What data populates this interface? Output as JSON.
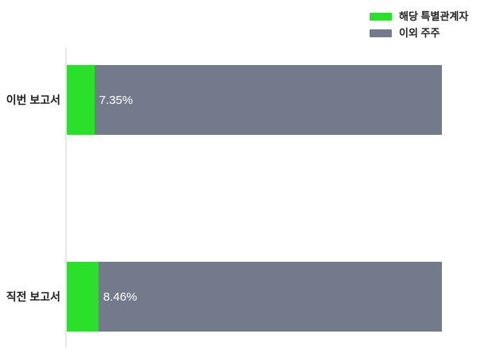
{
  "colors": {
    "green": "#2BE02B",
    "gray": "#727A8B",
    "axis_line": "#E8E8E8",
    "category_text": "#1D1D1D",
    "value_text": "#FFFFFF",
    "legend_text": "#222222",
    "background": "#FFFFFF"
  },
  "legend": {
    "position": "top-right",
    "items": [
      {
        "label": "해당 특별관계자",
        "color": "#2BE02B",
        "swatch": "green-swatch"
      },
      {
        "label": "이외 주주",
        "color": "#727A8B",
        "swatch": "gray-swatch"
      }
    ]
  },
  "chart_data": {
    "type": "bar",
    "orientation": "horizontal",
    "stacked": true,
    "unit": "%",
    "title": "",
    "xlabel": "",
    "ylabel": "",
    "xlim": [
      0,
      100
    ],
    "grid": false,
    "legend_position": "top-right",
    "categories": [
      "이번 보고서",
      "직전 보고서"
    ],
    "series": [
      {
        "name": "해당 특별관계자",
        "color": "#2BE02B",
        "values": [
          7.35,
          8.46
        ]
      },
      {
        "name": "이외 주주",
        "color": "#727A8B",
        "values": [
          92.65,
          91.54
        ]
      }
    ],
    "value_labels": [
      "7.35%",
      "8.46%"
    ]
  }
}
